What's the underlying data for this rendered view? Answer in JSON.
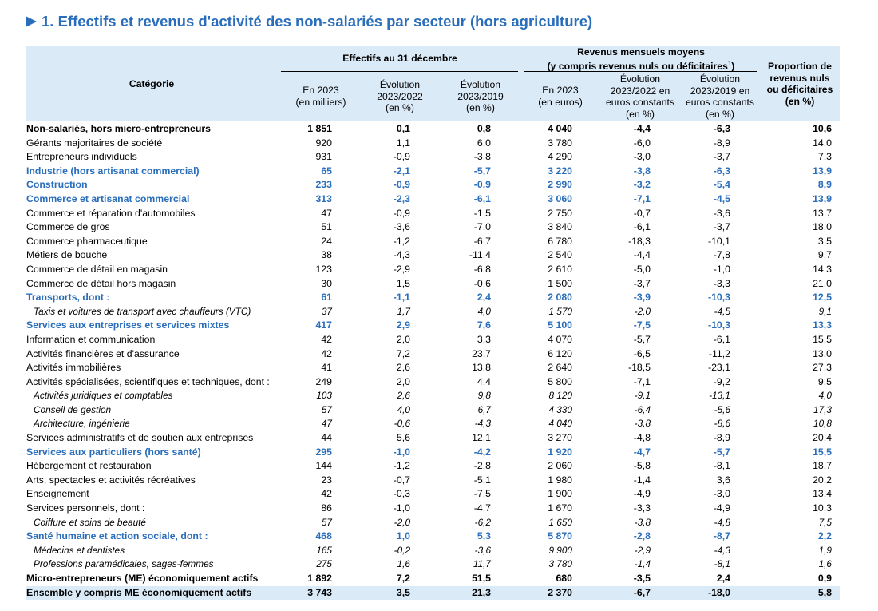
{
  "title": "1. Effectifs et revenus d'activité des non-salariés par secteur (hors agriculture)",
  "header": {
    "categorie": "Catégorie",
    "effectifs_group": "Effectifs au 31 décembre",
    "revenus_group_line1": "Revenus mensuels moyens",
    "revenus_group_line2": "(y compris revenus nuls ou déficitaires",
    "revenus_group_note": "1",
    "revenus_group_close": ")",
    "col1_l1": "En 2023",
    "col1_l2": "(en milliers)",
    "col2_l1": "Évolution",
    "col2_l2": "2023/2022",
    "col2_l3": "(en %)",
    "col3_l1": "Évolution",
    "col3_l2": "2023/2019",
    "col3_l3": "(en %)",
    "col4_l1": "En 2023",
    "col4_l2": "(en euros)",
    "col5_l1": "Évolution",
    "col5_l2": "2023/2022 en",
    "col5_l3": "euros constants",
    "col5_l4": "(en %)",
    "col6_l1": "Évolution",
    "col6_l2": "2023/2019 en",
    "col6_l3": "euros constants",
    "col6_l4": "(en %)",
    "col7_l1": "Proportion de",
    "col7_l2": "revenus nuls",
    "col7_l3": "ou déficitaires",
    "col7_l4": "(en %)"
  },
  "rows": [
    {
      "style": "bold",
      "label": "Non-salariés, hors micro-entrepreneurs",
      "v": [
        "1 851",
        "0,1",
        "0,8",
        "4 040",
        "-4,4",
        "-6,3",
        "10,6"
      ]
    },
    {
      "style": "",
      "label": "Gérants majoritaires de société",
      "v": [
        "920",
        "1,1",
        "6,0",
        "3 780",
        "-6,0",
        "-8,9",
        "14,0"
      ]
    },
    {
      "style": "",
      "label": "Entrepreneurs individuels",
      "v": [
        "931",
        "-0,9",
        "-3,8",
        "4 290",
        "-3,0",
        "-3,7",
        "7,3"
      ]
    },
    {
      "style": "blue",
      "label": "Industrie (hors artisanat commercial)",
      "v": [
        "65",
        "-2,1",
        "-5,7",
        "3 220",
        "-3,8",
        "-6,3",
        "13,9"
      ]
    },
    {
      "style": "blue",
      "label": "Construction",
      "v": [
        "233",
        "-0,9",
        "-0,9",
        "2 990",
        "-3,2",
        "-5,4",
        "8,9"
      ]
    },
    {
      "style": "blue",
      "label": "Commerce et artisanat commercial",
      "v": [
        "313",
        "-2,3",
        "-6,1",
        "3 060",
        "-7,1",
        "-4,5",
        "13,9"
      ]
    },
    {
      "style": "",
      "label": "Commerce et réparation d'automobiles",
      "v": [
        "47",
        "-0,9",
        "-1,5",
        "2 750",
        "-0,7",
        "-3,6",
        "13,7"
      ]
    },
    {
      "style": "",
      "label": "Commerce de gros",
      "v": [
        "51",
        "-3,6",
        "-7,0",
        "3 840",
        "-6,1",
        "-3,7",
        "18,0"
      ]
    },
    {
      "style": "",
      "label": "Commerce pharmaceutique",
      "v": [
        "24",
        "-1,2",
        "-6,7",
        "6 780",
        "-18,3",
        "-10,1",
        "3,5"
      ]
    },
    {
      "style": "",
      "label": "Métiers de bouche",
      "v": [
        "38",
        "-4,3",
        "-11,4",
        "2 540",
        "-4,4",
        "-7,8",
        "9,7"
      ]
    },
    {
      "style": "",
      "label": "Commerce de détail en magasin",
      "v": [
        "123",
        "-2,9",
        "-6,8",
        "2 610",
        "-5,0",
        "-1,0",
        "14,3"
      ]
    },
    {
      "style": "",
      "label": "Commerce de détail hors magasin",
      "v": [
        "30",
        "1,5",
        "-0,6",
        "1 500",
        "-3,7",
        "-3,3",
        "21,0"
      ]
    },
    {
      "style": "blue",
      "label": "Transports, dont :",
      "v": [
        "61",
        "-1,1",
        "2,4",
        "2 080",
        "-3,9",
        "-10,3",
        "12,5"
      ]
    },
    {
      "style": "ital",
      "label": "Taxis et voitures de transport avec chauffeurs (VTC)",
      "v": [
        "37",
        "1,7",
        "4,0",
        "1 570",
        "-2,0",
        "-4,5",
        "9,1"
      ]
    },
    {
      "style": "blue",
      "label": "Services aux entreprises et services mixtes",
      "v": [
        "417",
        "2,9",
        "7,6",
        "5 100",
        "-7,5",
        "-10,3",
        "13,3"
      ]
    },
    {
      "style": "",
      "label": "Information et communication",
      "v": [
        "42",
        "2,0",
        "3,3",
        "4 070",
        "-5,7",
        "-6,1",
        "15,5"
      ]
    },
    {
      "style": "",
      "label": "Activités financières et d'assurance",
      "v": [
        "42",
        "7,2",
        "23,7",
        "6 120",
        "-6,5",
        "-11,2",
        "13,0"
      ]
    },
    {
      "style": "",
      "label": "Activités immobilières",
      "v": [
        "41",
        "2,6",
        "13,8",
        "2 640",
        "-18,5",
        "-23,1",
        "27,3"
      ]
    },
    {
      "style": "",
      "label": "Activités spécialisées, scientifiques et techniques, dont :",
      "v": [
        "249",
        "2,0",
        "4,4",
        "5 800",
        "-7,1",
        "-9,2",
        "9,5"
      ]
    },
    {
      "style": "ital",
      "label": "Activités juridiques et comptables",
      "v": [
        "103",
        "2,6",
        "9,8",
        "8 120",
        "-9,1",
        "-13,1",
        "4,0"
      ]
    },
    {
      "style": "ital",
      "label": "Conseil de gestion",
      "v": [
        "57",
        "4,0",
        "6,7",
        "4 330",
        "-6,4",
        "-5,6",
        "17,3"
      ]
    },
    {
      "style": "ital",
      "label": "Architecture, ingénierie",
      "v": [
        "47",
        "-0,6",
        "-4,3",
        "4 040",
        "-3,8",
        "-8,6",
        "10,8"
      ]
    },
    {
      "style": "",
      "label": "Services administratifs et de soutien aux entreprises",
      "v": [
        "44",
        "5,6",
        "12,1",
        "3 270",
        "-4,8",
        "-8,9",
        "20,4"
      ]
    },
    {
      "style": "blue",
      "label": "Services aux particuliers (hors santé)",
      "v": [
        "295",
        "-1,0",
        "-4,2",
        "1 920",
        "-4,7",
        "-5,7",
        "15,5"
      ]
    },
    {
      "style": "",
      "label": "Hébergement et restauration",
      "v": [
        "144",
        "-1,2",
        "-2,8",
        "2 060",
        "-5,8",
        "-8,1",
        "18,7"
      ]
    },
    {
      "style": "",
      "label": "Arts, spectacles et activités récréatives",
      "v": [
        "23",
        "-0,7",
        "-5,1",
        "1 980",
        "-1,4",
        "3,6",
        "20,2"
      ]
    },
    {
      "style": "",
      "label": "Enseignement",
      "v": [
        "42",
        "-0,3",
        "-7,5",
        "1 900",
        "-4,9",
        "-3,0",
        "13,4"
      ]
    },
    {
      "style": "",
      "label": "Services personnels, dont :",
      "v": [
        "86",
        "-1,0",
        "-4,7",
        "1 670",
        "-3,3",
        "-4,9",
        "10,3"
      ]
    },
    {
      "style": "ital",
      "label": "Coiffure et soins de beauté",
      "v": [
        "57",
        "-2,0",
        "-6,2",
        "1 650",
        "-3,8",
        "-4,8",
        "7,5"
      ]
    },
    {
      "style": "blue",
      "label": "Santé humaine et action sociale, dont :",
      "v": [
        "468",
        "1,0",
        "5,3",
        "5 870",
        "-2,8",
        "-8,7",
        "2,2"
      ]
    },
    {
      "style": "ital",
      "label": "Médecins et dentistes",
      "v": [
        "165",
        "-0,2",
        "-3,6",
        "9 900",
        "-2,9",
        "-4,3",
        "1,9"
      ]
    },
    {
      "style": "ital",
      "label": "Professions paramédicales, sages-femmes",
      "v": [
        "275",
        "1,6",
        "11,7",
        "3 780",
        "-1,4",
        "-8,1",
        "1,6"
      ]
    },
    {
      "style": "bold",
      "label": "Micro-entrepreneurs (ME) économiquement actifs",
      "v": [
        "1 892",
        "7,2",
        "51,5",
        "680",
        "-3,5",
        "2,4",
        "0,9"
      ]
    },
    {
      "style": "total",
      "label": "Ensemble y compris ME économiquement actifs",
      "v": [
        "3 743",
        "3,5",
        "21,3",
        "2 370",
        "-6,7",
        "-18,0",
        "5,8"
      ]
    }
  ]
}
